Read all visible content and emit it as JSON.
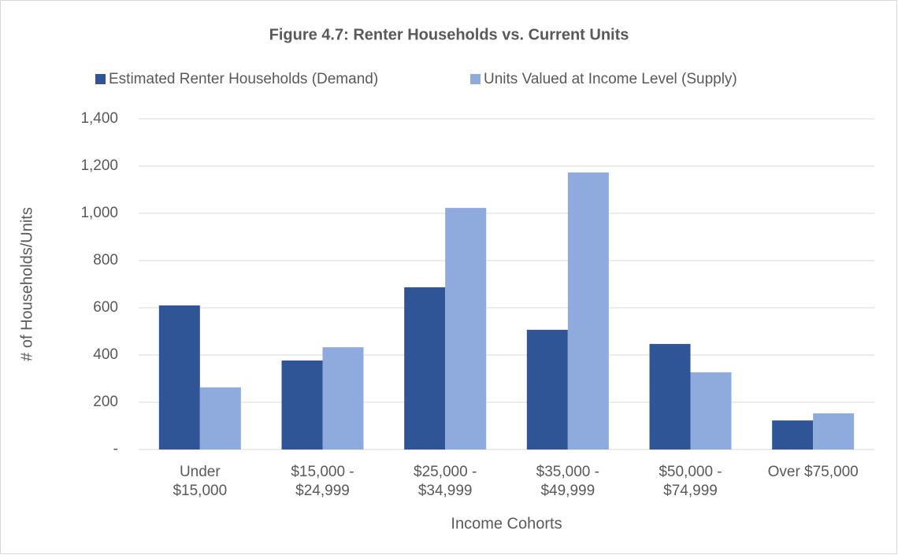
{
  "chart_data": {
    "type": "bar",
    "title": "Figure 4.7: Renter Households vs. Current Units",
    "categories": [
      "Under\n$15,000",
      "$15,000 -\n$24,999",
      "$25,000 -\n$34,999",
      "$35,000 -\n$49,999",
      "$50,000 -\n$74,999",
      "Over $75,000"
    ],
    "series": [
      {
        "name": "Estimated Renter Households (Demand)",
        "color": "#2f5597",
        "values": [
          610,
          377,
          687,
          507,
          447,
          123
        ]
      },
      {
        "name": "Units Valued at Income Level (Supply)",
        "color": "#8faadc",
        "values": [
          263,
          433,
          1023,
          1173,
          327,
          153
        ]
      }
    ],
    "x_label": "Income Cohorts",
    "y_label": "# of Households/Units",
    "ylim": [
      0,
      1400
    ],
    "yticks": [
      {
        "value": 0,
        "label": "-"
      },
      200,
      400,
      600,
      800,
      {
        "value": 1000,
        "label": "1,000"
      },
      {
        "value": 1200,
        "label": "1,200"
      },
      {
        "value": 1400,
        "label": "1,400"
      }
    ],
    "grid": true,
    "legend": "top"
  }
}
